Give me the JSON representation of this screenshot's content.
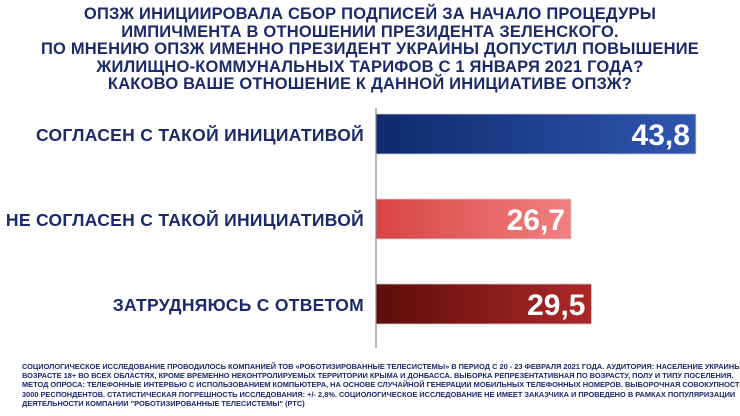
{
  "title_lines": [
    "ОПЗЖ ИНИЦИИРОВАЛА СБОР ПОДПИСЕЙ ЗА НАЧАЛО ПРОЦЕДУРЫ",
    "ИМПИЧМЕНТА В ОТНОШЕНИИ ПРЕЗИДЕНТА ЗЕЛЕНСКОГО.",
    "ПО МНЕНИЮ ОПЗЖ ИМЕННО ПРЕЗИДЕНТ УКРАИНЫ ДОПУСТИЛ ПОВЫШЕНИЕ",
    "ЖИЛИЩНО-КОММУНАЛЬНЫХ ТАРИФОВ С 1 ЯНВАРЯ 2021 ГОДА?",
    "КАКОВО ВАШЕ ОТНОШЕНИЕ К ДАННОЙ ИНИЦИАТИВЕ ОПЗЖ?"
  ],
  "chart_data": {
    "type": "bar",
    "orientation": "horizontal",
    "categories": [
      "СОГЛАСЕН С ТАКОЙ ИНИЦИАТИВОЙ",
      "НЕ СОГЛАСЕН С ТАКОЙ ИНИЦИАТИВОЙ",
      "ЗАТРУДНЯЮСЬ С ОТВЕТОМ"
    ],
    "values": [
      43.8,
      26.7,
      29.5
    ],
    "value_labels": [
      "43,8",
      "26,7",
      "29,5"
    ],
    "colors": [
      [
        "#0f2a6e",
        "#2f56b0"
      ],
      [
        "#d84444",
        "#f28080"
      ],
      [
        "#5e0c0c",
        "#ad2828"
      ]
    ],
    "axis_color": "#8a8a8a",
    "xlim": [
      0,
      46
    ]
  },
  "footnote_lines": [
    "СОЦИОЛОГИЧЕСКОЕ ИССЛЕДОВАНИЕ ПРОВОДИЛОСЬ КОМПАНИЕЙ ТОВ «РОБОТИЗИРОВАННЫЕ ТЕЛЕСИСТЕМЫ» В ПЕРИОД С 20 - 23 ФЕВРАЛЯ 2021 ГОДА. АУДИТОРИЯ: НАСЕЛЕНИЕ УКРАИНЫ В",
    "ВОЗРАСТЕ 18+ ВО ВСЕХ ОБЛАСТЯХ, КРОМЕ ВРЕМЕННО НЕКОНТРОЛИРУЕМЫХ ТЕРРИТОРИИ КРЫМА И ДОНБАССА. ВЫБОРКА РЕПРЕЗЕНТАТИВНАЯ ПО ВОЗРАСТУ, ПОЛУ И ТИПУ ПОСЕЛЕНИЯ.",
    "МЕТОД ОПРОСА: ТЕЛЕФОННЫЕ ИНТЕРВЬЮ С ИСПОЛЬЗОВАНИЕМ КОМПЬЮТЕРА, НА ОСНОВЕ СЛУЧАЙНОЙ ГЕНЕРАЦИИ МОБИЛЬНЫХ ТЕЛЕФОННЫХ НОМЕРОВ. ВЫБОРОЧНАЯ СОВОКУПНОСТЬ:",
    "3000 РЕСПОНДЕНТОВ. СТАТИСТИЧЕСКАЯ ПОГРЕШНОСТЬ ИССЛЕДОВАНИЯ: +/- 2,8%. СОЦИОЛОГИЧЕСКОЕ ИССЛЕДОВАНИЕ НЕ ИМЕЕТ ЗАКАЗЧИКА И ПРОВЕДЕНО В РАМКАХ ПОПУЛЯРИЗАЦИИ",
    "ДЕЯТЕЛЬНОСТИ КОМПАНИИ \"РОБОТИЗИРОВАННЫЕ ТЕЛЕСИСТЕМЫ\" (РТС)"
  ]
}
